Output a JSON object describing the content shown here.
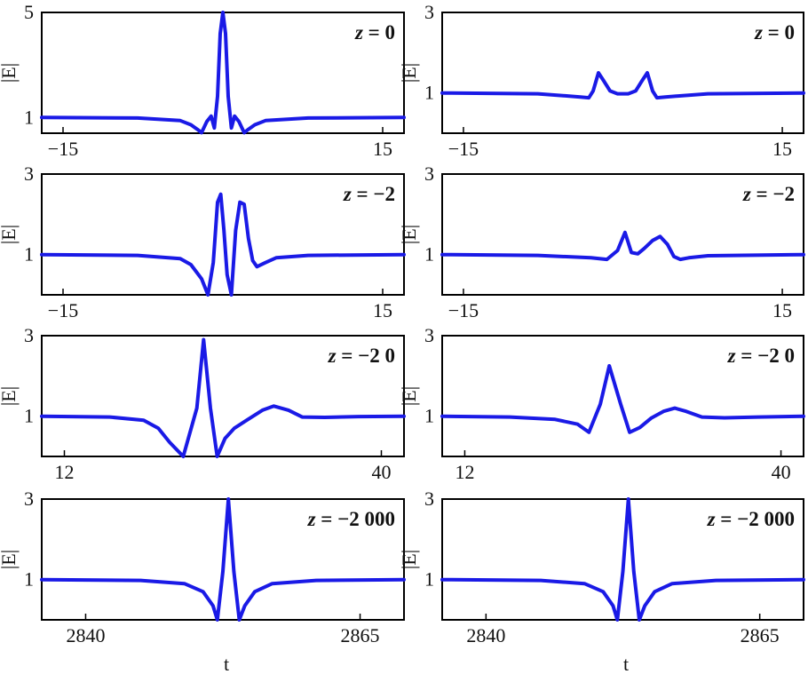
{
  "figure": {
    "xlabel": "t",
    "ylabel": "|E|",
    "curve_color": "#1a1ae6"
  },
  "chart_data": [
    {
      "type": "line",
      "panel": "row1-left",
      "label_var": "z",
      "label_eq": " = ",
      "label_val": "0",
      "ylim": [
        0.4,
        5
      ],
      "yticks": [
        1,
        5
      ],
      "xlim": [
        -17,
        17
      ],
      "xticks": [
        -15,
        15
      ],
      "x": [
        -17,
        -8,
        -4,
        -3,
        -2.4,
        -2,
        -1.5,
        -1.1,
        -0.8,
        -0.5,
        -0.25,
        0,
        0.25,
        0.5,
        0.8,
        1.1,
        1.5,
        2,
        2.4,
        3,
        4,
        8,
        17
      ],
      "y": [
        1,
        0.98,
        0.88,
        0.72,
        0.55,
        0.42,
        0.85,
        1.05,
        0.6,
        1.8,
        4.2,
        5,
        4.2,
        1.8,
        0.6,
        1.05,
        0.85,
        0.42,
        0.55,
        0.72,
        0.88,
        0.98,
        1
      ]
    },
    {
      "type": "line",
      "panel": "row1-right",
      "label_var": "z",
      "label_eq": " = ",
      "label_val": "0",
      "ylim": [
        0,
        3
      ],
      "yticks": [
        1,
        3
      ],
      "xlim": [
        -17,
        17
      ],
      "xticks": [
        -15,
        15
      ],
      "x": [
        -17,
        -8,
        -4,
        -3.2,
        -2.8,
        -2.3,
        -1.8,
        -1.2,
        -0.5,
        0,
        0.5,
        1.2,
        1.8,
        2.3,
        2.8,
        3.2,
        4,
        8,
        17
      ],
      "y": [
        1,
        0.98,
        0.9,
        0.88,
        1.05,
        1.5,
        1.3,
        1.05,
        0.98,
        0.98,
        0.98,
        1.05,
        1.3,
        1.5,
        1.05,
        0.88,
        0.9,
        0.98,
        1
      ]
    },
    {
      "type": "line",
      "panel": "row2-left",
      "label_var": "z",
      "label_eq": " = ",
      "label_val": "−2",
      "ylim": [
        0,
        3
      ],
      "yticks": [
        1,
        3
      ],
      "xlim": [
        -17,
        17
      ],
      "xticks": [
        -15,
        15
      ],
      "x": [
        -17,
        -8,
        -4,
        -3,
        -2,
        -1.4,
        -0.9,
        -0.5,
        -0.2,
        0.1,
        0.4,
        0.8,
        1.2,
        1.6,
        2,
        2.4,
        2.8,
        3.2,
        4,
        5,
        8,
        17
      ],
      "y": [
        1,
        0.98,
        0.9,
        0.75,
        0.4,
        0,
        0.8,
        2.3,
        2.5,
        1.6,
        0.5,
        0,
        1.6,
        2.3,
        2.25,
        1.4,
        0.85,
        0.7,
        0.8,
        0.92,
        0.98,
        1
      ]
    },
    {
      "type": "line",
      "panel": "row2-right",
      "label_var": "z",
      "label_eq": " = ",
      "label_val": "−2",
      "ylim": [
        0,
        3
      ],
      "yticks": [
        1,
        3
      ],
      "xlim": [
        -17,
        17
      ],
      "xticks": [
        -15,
        15
      ],
      "x": [
        -17,
        -8,
        -3,
        -1.5,
        -0.5,
        0.2,
        0.8,
        1.4,
        2,
        2.8,
        3.5,
        4.2,
        4.8,
        5.4,
        6.2,
        8,
        17
      ],
      "y": [
        1,
        0.98,
        0.92,
        0.88,
        1.1,
        1.55,
        1.05,
        1.02,
        1.15,
        1.35,
        1.45,
        1.25,
        0.95,
        0.88,
        0.92,
        0.97,
        1
      ]
    },
    {
      "type": "line",
      "panel": "row3-left",
      "label_var": "z",
      "label_eq": " = −2 ",
      "label_val": "0",
      "ylim": [
        0,
        3
      ],
      "yticks": [
        1,
        3
      ],
      "xlim": [
        10,
        42
      ],
      "xticks": [
        12,
        40
      ],
      "x": [
        10,
        16,
        19,
        20.3,
        21.3,
        22.5,
        23.7,
        24.3,
        24.9,
        25.5,
        26.2,
        27,
        28,
        29.5,
        30.5,
        31.8,
        33,
        35,
        38,
        42
      ],
      "y": [
        1,
        0.98,
        0.9,
        0.7,
        0.35,
        0,
        1.2,
        2.9,
        1.2,
        0,
        0.45,
        0.7,
        0.88,
        1.15,
        1.25,
        1.15,
        0.98,
        0.97,
        0.99,
        1
      ]
    },
    {
      "type": "line",
      "panel": "row3-right",
      "label_var": "z",
      "label_eq": " = −2 ",
      "label_val": "0",
      "ylim": [
        0,
        3
      ],
      "yticks": [
        1,
        3
      ],
      "xlim": [
        10,
        42
      ],
      "xticks": [
        12,
        40
      ],
      "x": [
        10,
        16,
        20,
        22,
        23,
        24,
        24.8,
        25.8,
        26.6,
        27.5,
        28.5,
        29.6,
        30.6,
        31.6,
        33,
        35,
        38,
        42
      ],
      "y": [
        1,
        0.98,
        0.92,
        0.8,
        0.6,
        1.3,
        2.25,
        1.3,
        0.6,
        0.72,
        0.95,
        1.12,
        1.2,
        1.12,
        0.98,
        0.96,
        0.98,
        1
      ]
    },
    {
      "type": "line",
      "panel": "row4-left",
      "label_var": "z",
      "label_eq": " = −2 000",
      "label_val": "",
      "ylim": [
        0,
        3
      ],
      "yticks": [
        1,
        3
      ],
      "xlim": [
        2836,
        2869
      ],
      "xticks": [
        2840,
        2865
      ],
      "x": [
        2836,
        2845,
        2849,
        2850.7,
        2851.6,
        2852,
        2852.5,
        2853,
        2853.5,
        2854,
        2854.5,
        2855.4,
        2857,
        2861,
        2869
      ],
      "y": [
        1,
        0.98,
        0.9,
        0.7,
        0.35,
        0,
        1.2,
        3,
        1.2,
        0,
        0.35,
        0.7,
        0.9,
        0.98,
        1
      ]
    },
    {
      "type": "line",
      "panel": "row4-right",
      "label_var": "z",
      "label_eq": " = −2 000",
      "label_val": "",
      "ylim": [
        0,
        3
      ],
      "yticks": [
        1,
        3
      ],
      "xlim": [
        2836,
        2869
      ],
      "xticks": [
        2840,
        2865
      ],
      "x": [
        2836,
        2845,
        2849,
        2850.7,
        2851.6,
        2852,
        2852.5,
        2853,
        2853.5,
        2854,
        2854.5,
        2855.4,
        2857,
        2861,
        2869
      ],
      "y": [
        1,
        0.98,
        0.9,
        0.7,
        0.35,
        0,
        1.2,
        3,
        1.2,
        0,
        0.35,
        0.7,
        0.9,
        0.98,
        1
      ]
    }
  ]
}
